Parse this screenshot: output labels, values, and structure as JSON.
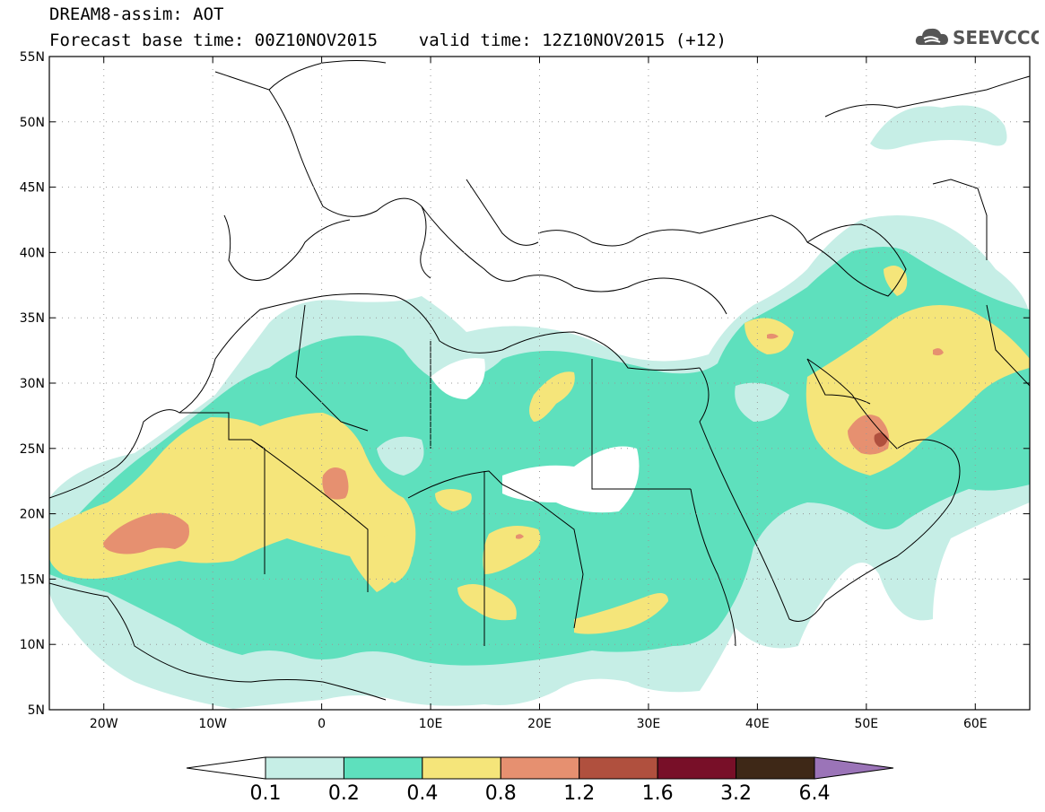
{
  "header": {
    "line1": "DREAM8-assim: AOT",
    "line2": "Forecast base time: 00Z10NOV2015    valid time: 12Z10NOV2015 (+12)"
  },
  "logo": {
    "text": "SEEVCCC",
    "icon": "cloud-icon"
  },
  "map": {
    "lon_range": [
      -25,
      65
    ],
    "lat_range": [
      5,
      55
    ],
    "lat_ticks": [
      "55N",
      "50N",
      "45N",
      "40N",
      "35N",
      "30N",
      "25N",
      "20N",
      "15N",
      "10N",
      "5N"
    ],
    "lon_ticks": [
      "20W",
      "10W",
      "0",
      "10E",
      "20E",
      "30E",
      "40E",
      "50E",
      "60E"
    ],
    "grid": "dotted"
  },
  "colorbar": {
    "labels": [
      "0.1",
      "0.2",
      "0.4",
      "0.8",
      "1.2",
      "1.6",
      "3.2",
      "6.4"
    ],
    "colors": [
      "#ffffff",
      "#c6eee6",
      "#5ee0bd",
      "#f5e57a",
      "#e69070",
      "#b0503e",
      "#780f28",
      "#3e2817",
      "#9b74b8"
    ]
  },
  "colors": {
    "land_outline": "#000000",
    "background": "#ffffff"
  }
}
